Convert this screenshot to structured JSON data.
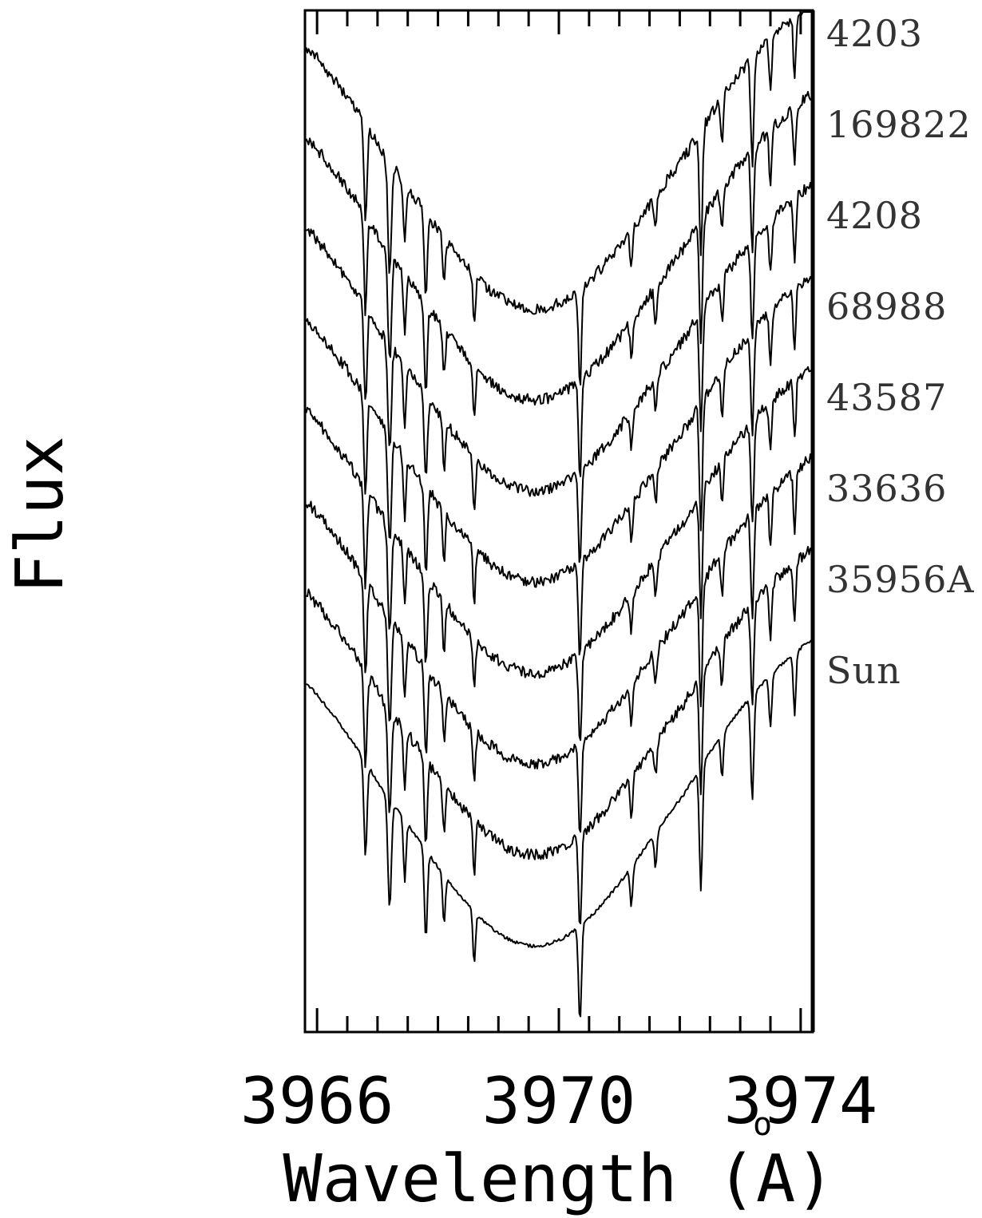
{
  "chart_data": {
    "type": "line",
    "title": "",
    "xlabel": "Wavelength (A)",
    "xlabel_ring_above": "o",
    "ylabel": "Flux",
    "xlim": [
      3965.8,
      3974.2
    ],
    "x_tick_labels": [
      "3966",
      "3970",
      "3974"
    ],
    "x_major_ticks": [
      3966,
      3970,
      3974
    ],
    "x_minor_tick_step": 0.5,
    "grid": false,
    "legend": "none",
    "label_position": "right-of-plot",
    "line_color": "#000000",
    "series": [
      {
        "name": "4203",
        "offset": 7
      },
      {
        "name": "169822",
        "offset": 6
      },
      {
        "name": "4208",
        "offset": 5
      },
      {
        "name": "68988",
        "offset": 4
      },
      {
        "name": "43587",
        "offset": 3
      },
      {
        "name": "33636",
        "offset": 2
      },
      {
        "name": "35956A",
        "offset": 1
      },
      {
        "name": "Sun",
        "offset": 0
      }
    ]
  }
}
